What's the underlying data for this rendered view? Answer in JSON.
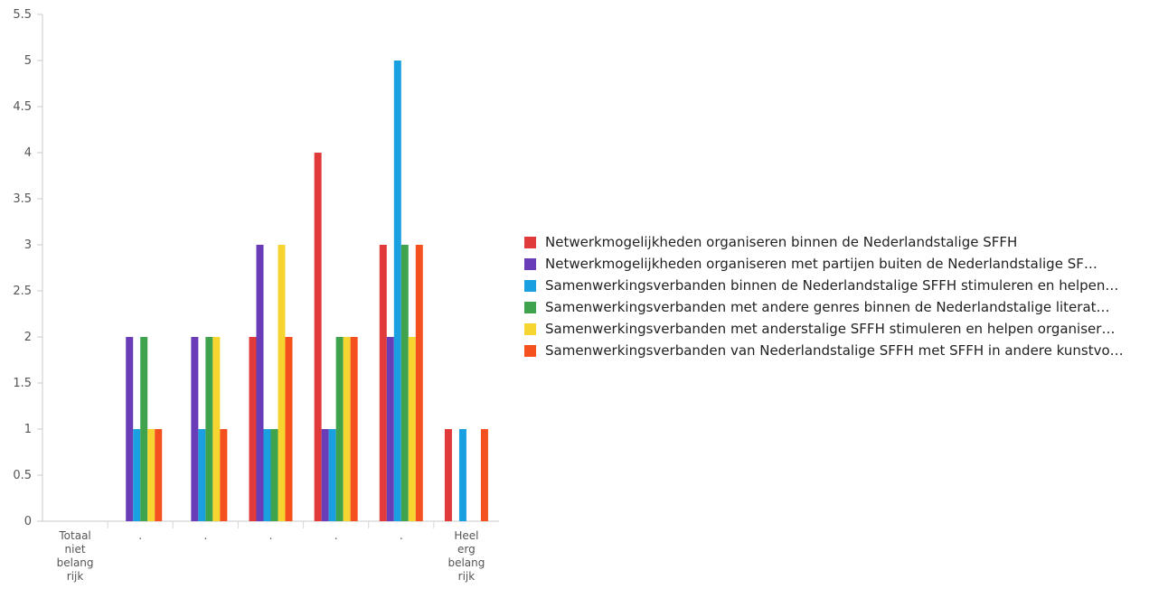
{
  "chart_data": {
    "type": "bar",
    "categories": [
      [
        "Totaal",
        "niet",
        "belang",
        "rijk"
      ],
      [
        "."
      ],
      [
        "."
      ],
      [
        "."
      ],
      [
        "."
      ],
      [
        "."
      ],
      [
        "Heel",
        "erg",
        "belang",
        "rijk"
      ]
    ],
    "ylim": [
      0,
      5.5
    ],
    "yticks": [
      "0",
      "0.5",
      "1",
      "1.5",
      "2",
      "2.5",
      "3",
      "3.5",
      "4",
      "4.5",
      "5",
      "5.5"
    ],
    "grid": false,
    "legend_position": "right",
    "series": [
      {
        "name": "Netwerkmogelijkheden organiseren binnen de Nederlandstalige SFFH",
        "color": "#e03a3a",
        "values": [
          0,
          0,
          0,
          2,
          4,
          3,
          1
        ]
      },
      {
        "name": "Netwerkmogelijkheden organiseren met partijen buiten de Nederlandstalige SF…",
        "color": "#6a3db8",
        "values": [
          0,
          2,
          2,
          3,
          1,
          2,
          0
        ]
      },
      {
        "name": "Samenwerkingsverbanden binnen de Nederlandstalige SFFH stimuleren en helpen…",
        "color": "#1a9fe0",
        "values": [
          0,
          1,
          1,
          1,
          1,
          5,
          1
        ]
      },
      {
        "name": "Samenwerkingsverbanden met andere genres binnen de Nederlandstalige literat…",
        "color": "#3fa34d",
        "values": [
          0,
          2,
          2,
          1,
          2,
          3,
          0
        ]
      },
      {
        "name": "Samenwerkingsverbanden met anderstalige SFFH stimuleren en helpen organiser…",
        "color": "#f7d531",
        "values": [
          0,
          1,
          2,
          3,
          2,
          2,
          0
        ]
      },
      {
        "name": "Samenwerkingsverbanden van Nederlandstalige SFFH met SFFH in andere kunstvo…",
        "color": "#f4511e",
        "values": [
          0,
          1,
          1,
          2,
          2,
          3,
          1
        ]
      }
    ]
  }
}
